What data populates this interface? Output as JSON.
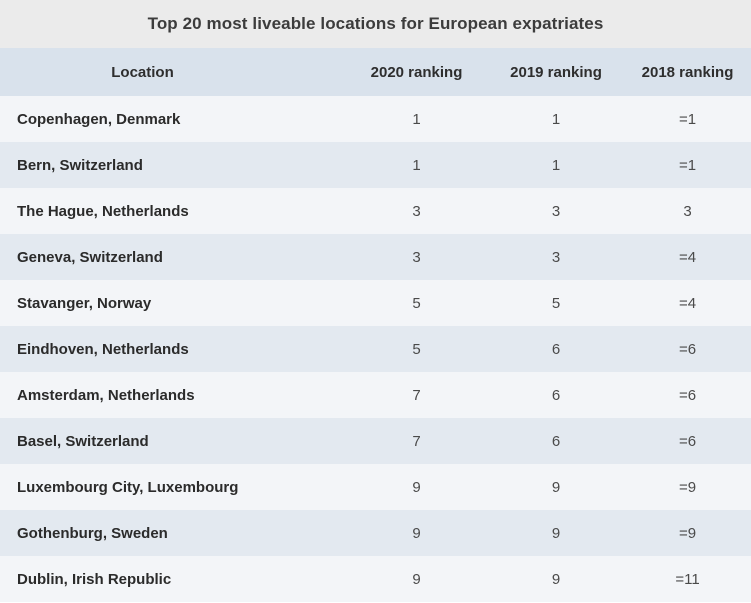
{
  "title": "Top 20 most liveable locations for European expatriates",
  "headers": {
    "location": "Location",
    "r2020": "2020 ranking",
    "r2019": "2019 ranking",
    "r2018": "2018 ranking"
  },
  "rows": [
    {
      "location": "Copenhagen, Denmark",
      "r2020": "1",
      "r2019": "1",
      "r2018": "=1"
    },
    {
      "location": "Bern, Switzerland",
      "r2020": "1",
      "r2019": "1",
      "r2018": "=1"
    },
    {
      "location": "The Hague, Netherlands",
      "r2020": "3",
      "r2019": "3",
      "r2018": "3"
    },
    {
      "location": "Geneva, Switzerland",
      "r2020": "3",
      "r2019": "3",
      "r2018": "=4"
    },
    {
      "location": "Stavanger, Norway",
      "r2020": "5",
      "r2019": "5",
      "r2018": "=4"
    },
    {
      "location": "Eindhoven, Netherlands",
      "r2020": "5",
      "r2019": "6",
      "r2018": "=6"
    },
    {
      "location": "Amsterdam, Netherlands",
      "r2020": "7",
      "r2019": "6",
      "r2018": "=6"
    },
    {
      "location": "Basel, Switzerland",
      "r2020": "7",
      "r2019": "6",
      "r2018": "=6"
    },
    {
      "location": "Luxembourg City, Luxembourg",
      "r2020": "9",
      "r2019": "9",
      "r2018": "=9"
    },
    {
      "location": "Gothenburg, Sweden",
      "r2020": "9",
      "r2019": "9",
      "r2018": "=9"
    },
    {
      "location": "Dublin, Irish Republic",
      "r2020": "9",
      "r2019": "9",
      "r2018": "=11"
    }
  ]
}
